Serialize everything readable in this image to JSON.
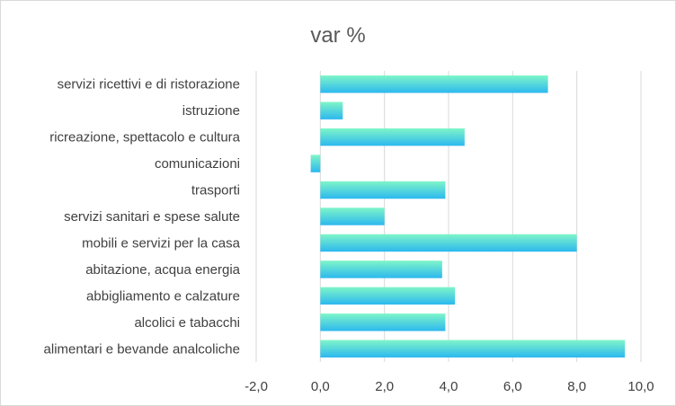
{
  "chart_data": {
    "type": "bar",
    "orientation": "horizontal",
    "title": "var %",
    "xlabel": "",
    "ylabel": "",
    "xlim": [
      -2,
      10
    ],
    "grid": true,
    "legend": "none",
    "categories": [
      "servizi ricettivi e di ristorazione",
      "istruzione",
      "ricreazione, spettacolo e cultura",
      "comunicazioni",
      "trasporti",
      "servizi sanitari e spese salute",
      "mobili e servizi per la casa",
      "abitazione, acqua energia",
      "abbigliamento e calzature",
      "alcolici e tabacchi",
      "alimentari e bevande analcoliche"
    ],
    "values": [
      7.1,
      0.7,
      4.5,
      -0.3,
      3.9,
      2.0,
      8.0,
      3.8,
      4.2,
      3.9,
      9.5
    ],
    "tick_labels": [
      "-2,0",
      "0,0",
      "2,0",
      "4,0",
      "6,0",
      "8,0",
      "10,0"
    ],
    "bar_colors": {
      "top": "#7ff5c8",
      "bottom": "#2cb8ef"
    }
  }
}
